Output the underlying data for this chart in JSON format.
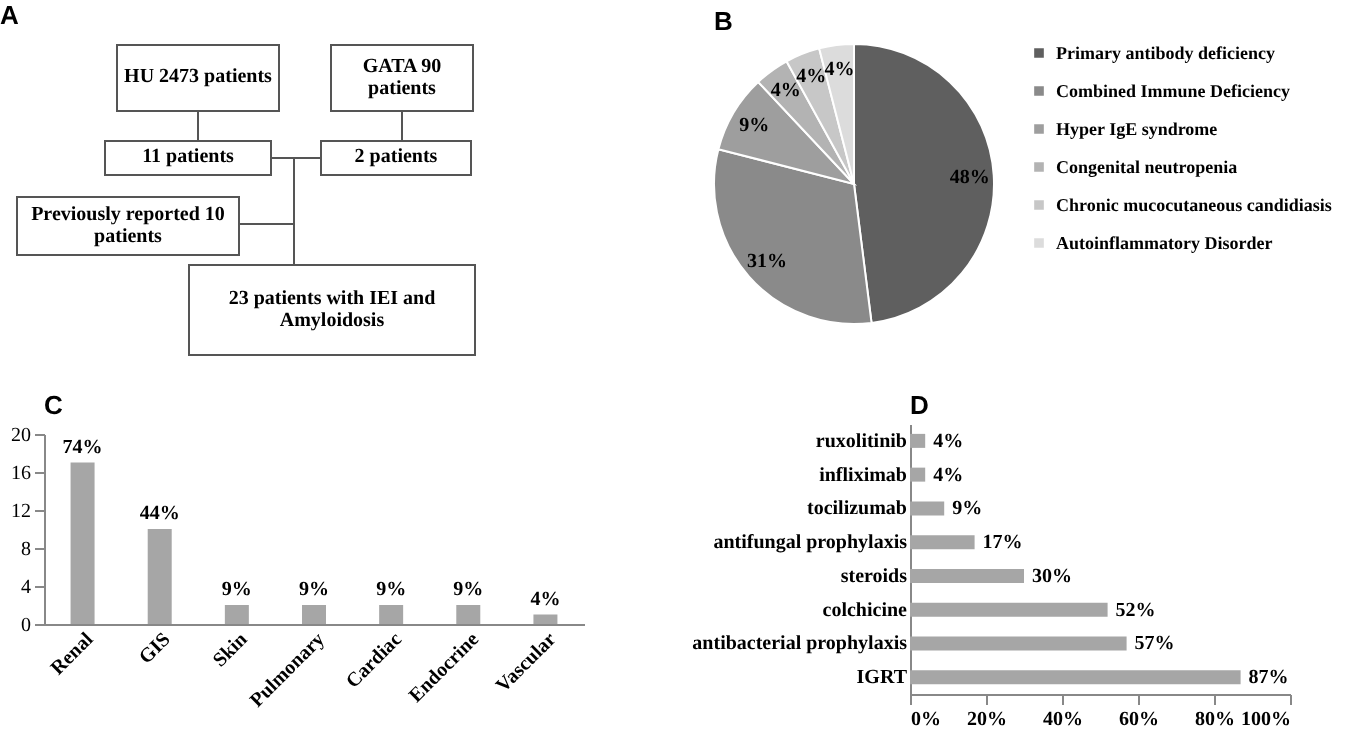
{
  "chart_data": [
    {
      "type": "other",
      "title": "A",
      "annotations": [
        "HU 2473 patients",
        "GATA 90 patients",
        "11 patients",
        "2 patients",
        "Previously reported 10 patients",
        "23 patients with IEI and Amyloidosis"
      ]
    },
    {
      "type": "pie",
      "title": "B",
      "categories": [
        "Primary antibody deficiency",
        "Combined Immune Deficiency",
        "Hyper IgE syndrome",
        "Congenital neutropenia",
        "Chronic mucocutaneous candidiasis",
        "Autoinflammatory Disorder"
      ],
      "values": [
        48,
        31,
        9,
        4,
        4,
        4
      ],
      "colors": [
        "#5f5f5f",
        "#8a8a8a",
        "#9e9e9e",
        "#b3b3b3",
        "#c7c7c7",
        "#dcdcdc"
      ],
      "value_labels": [
        "48%",
        "31%",
        "9%",
        "4%",
        "4%",
        "4%"
      ],
      "legend": "right"
    },
    {
      "type": "bar",
      "title": "C",
      "categories": [
        "Renal",
        "GIS",
        "Skin",
        "Pulmonary",
        "Cardiac",
        "Endocrine",
        "Vascular"
      ],
      "values": [
        17,
        10,
        2,
        2,
        2,
        2,
        1
      ],
      "color": "#a6a6a6",
      "annotations": [
        {
          "text": "74%",
          "x": "Renal",
          "y": 17
        },
        {
          "text": "44%",
          "x": "GIS",
          "y": 10
        },
        {
          "text": "9%",
          "x": "Skin",
          "y": 2
        },
        {
          "text": "9%",
          "x": "Pulmonary",
          "y": 2
        },
        {
          "text": "9%",
          "x": "Cardiac",
          "y": 2
        },
        {
          "text": "9%",
          "x": "Endocrine",
          "y": 2
        },
        {
          "text": "4%",
          "x": "Vascular",
          "y": 1
        }
      ],
      "ylim": [
        0,
        20
      ],
      "yticks": [
        0,
        4,
        8,
        12,
        16,
        20
      ]
    },
    {
      "type": "bar",
      "title": "D",
      "orientation": "horizontal",
      "categories": [
        "ruxolitinib",
        "infliximab",
        "tocilizumab",
        "antifungal prophylaxis",
        "steroids",
        "colchicine",
        "antibacterial prophylaxis",
        "IGRT"
      ],
      "values": [
        4,
        4,
        9,
        17,
        30,
        52,
        57,
        87
      ],
      "color": "#a6a6a6",
      "value_labels": [
        "4%",
        "4%",
        "9%",
        "17%",
        "30%",
        "52%",
        "57%",
        "87%"
      ],
      "xlim": [
        0,
        100
      ],
      "xticks": [
        {
          "value": 0,
          "label": "0%"
        },
        {
          "value": 20,
          "label": "20%"
        },
        {
          "value": 40,
          "label": "40%"
        },
        {
          "value": 60,
          "label": "60%"
        },
        {
          "value": 80,
          "label": "80%"
        },
        {
          "value": 100,
          "label": "100%"
        }
      ]
    }
  ]
}
